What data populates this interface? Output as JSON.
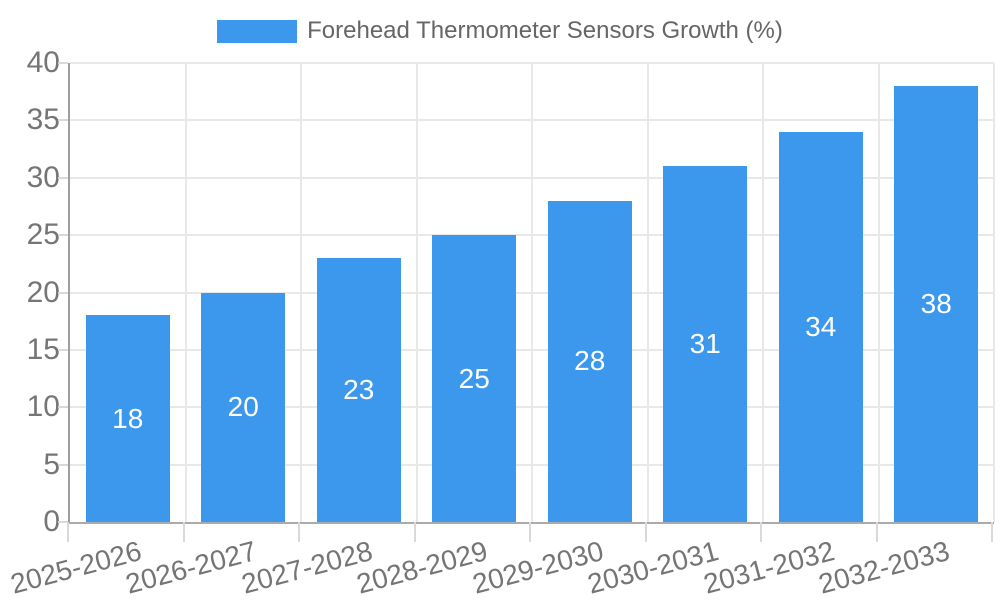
{
  "legend": {
    "label": "Forehead Thermometer Sensors Growth (%)"
  },
  "colors": {
    "bar": "#3b98ec",
    "grid": "#e8e8e8",
    "y_axis_line": "#9e9e9e",
    "baseline": "#ababab",
    "tick_mark": "#d9d9d9",
    "tick_label_text": "#757575",
    "legend_text": "#666666",
    "bar_value_text": "#ffffff",
    "background": "#ffffff"
  },
  "chart_data": {
    "type": "bar",
    "title": "Forehead Thermometer Sensors Growth (%)",
    "categories": [
      "2025-2026",
      "2026-2027",
      "2027-2028",
      "2028-2029",
      "2029-2030",
      "2030-2031",
      "2031-2032",
      "2032-2033"
    ],
    "values": [
      18,
      20,
      23,
      25,
      28,
      31,
      34,
      38
    ],
    "xlabel": "",
    "ylabel": "",
    "ylim": [
      0,
      40
    ],
    "yticks": [
      0,
      5,
      10,
      15,
      20,
      25,
      30,
      35,
      40
    ],
    "grid": true,
    "legend_position": "top",
    "bar_label_position": "center-inside",
    "x_label_rotation_deg": -15
  }
}
